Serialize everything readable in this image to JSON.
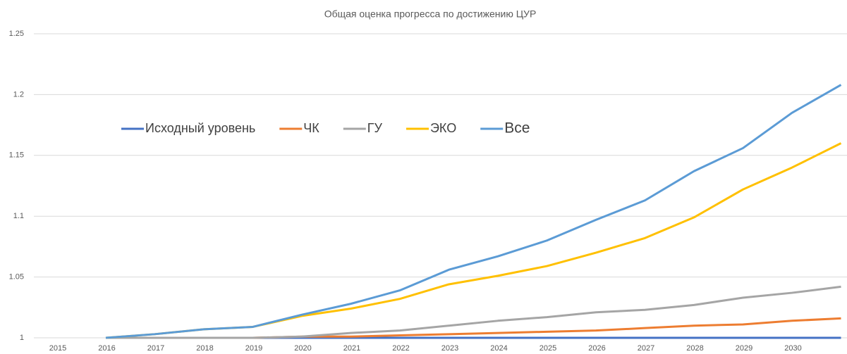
{
  "chart_data": {
    "type": "line",
    "title": "Общая оценка прогресса по достижению ЦУР",
    "categories": [
      "2015",
      "2016",
      "2017",
      "2018",
      "2019",
      "2020",
      "2021",
      "2022",
      "2023",
      "2024",
      "2025",
      "2026",
      "2027",
      "2028",
      "2029",
      "2030"
    ],
    "series": [
      {
        "name": "Исходный уровень",
        "color": "#4472c4",
        "values": [
          1,
          1,
          1,
          1,
          1,
          1,
          1,
          1,
          1,
          1,
          1,
          1,
          1,
          1,
          1,
          1
        ]
      },
      {
        "name": "ЧК",
        "color": "#ed7d31",
        "values": [
          1,
          1,
          1,
          1,
          1.001,
          1.001,
          1.002,
          1.003,
          1.004,
          1.005,
          1.006,
          1.008,
          1.01,
          1.011,
          1.014,
          1.016
        ]
      },
      {
        "name": "ГУ",
        "color": "#a5a5a5",
        "values": [
          1,
          1,
          1,
          1,
          1.001,
          1.004,
          1.006,
          1.01,
          1.014,
          1.017,
          1.021,
          1.023,
          1.027,
          1.033,
          1.037,
          1.042
        ]
      },
      {
        "name": "ЭКО",
        "color": "#ffc000",
        "values": [
          1,
          1.003,
          1.007,
          1.009,
          1.018,
          1.024,
          1.032,
          1.044,
          1.051,
          1.059,
          1.07,
          1.082,
          1.099,
          1.122,
          1.14,
          1.16
        ]
      },
      {
        "name": "Все",
        "color": "#5b9bd5",
        "values": [
          1,
          1.003,
          1.007,
          1.009,
          1.019,
          1.028,
          1.039,
          1.056,
          1.067,
          1.08,
          1.097,
          1.113,
          1.137,
          1.156,
          1.185,
          1.208
        ]
      }
    ],
    "ylim": [
      1,
      1.25
    ],
    "yticks": [
      1,
      1.05,
      1.1,
      1.15,
      1.2,
      1.25
    ],
    "grid": true,
    "legend": "inside"
  }
}
